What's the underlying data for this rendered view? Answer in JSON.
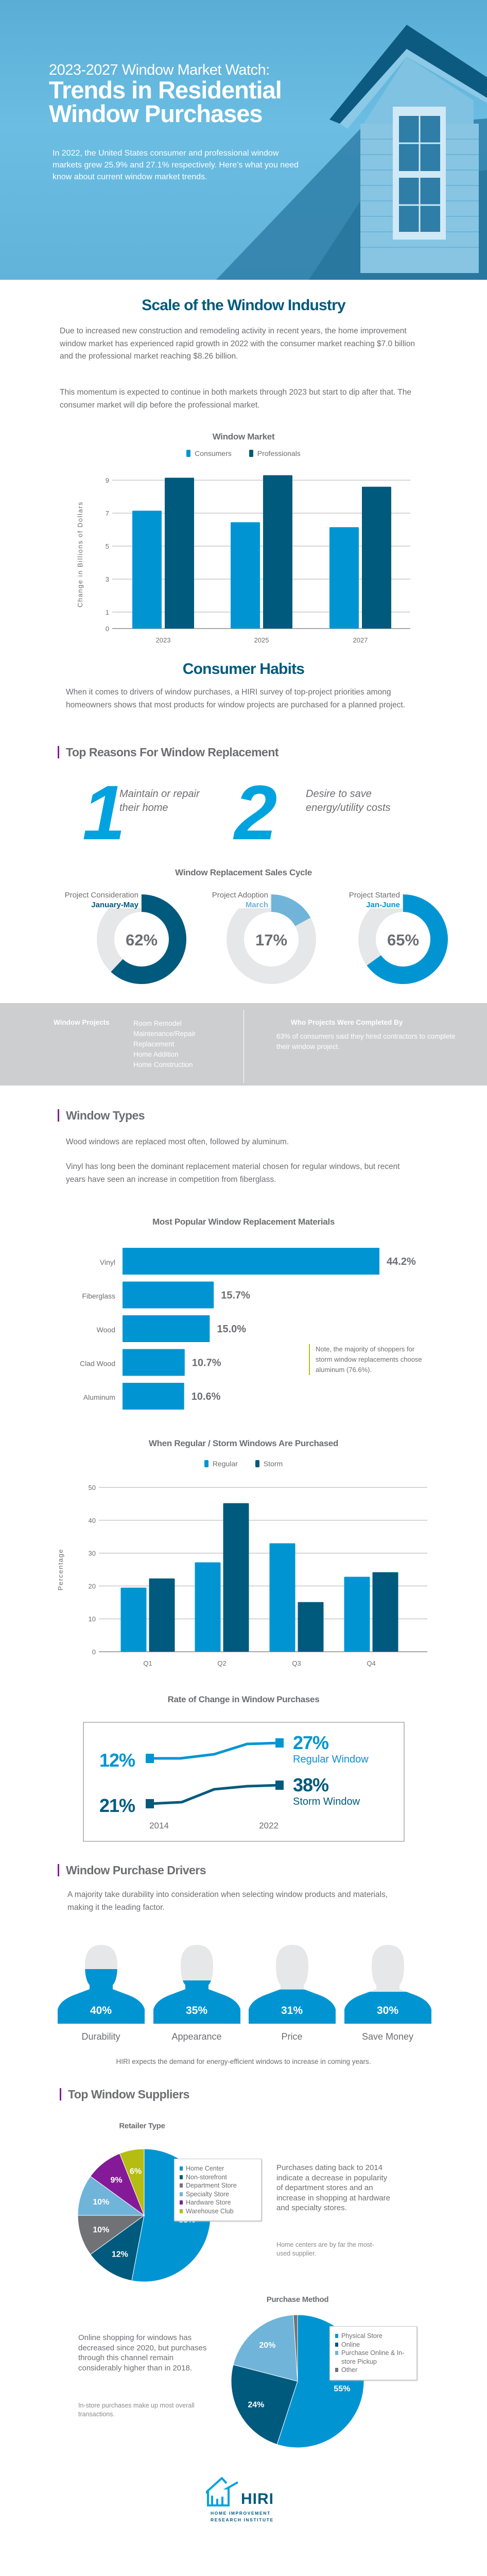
{
  "hero": {
    "kicker": "2023-2027 Window Market Watch:",
    "title_line1": "Trends in Residential",
    "title_line2": "Window Purchases",
    "intro": "In 2022, the United States consumer and professional window markets grew 25.9% and 27.1% respectively. Here’s what you need know about current window market trends."
  },
  "colors": {
    "navy": "#005a7d",
    "blue": "#0095d2",
    "light_blue": "#70b4d9",
    "gray": "#707276",
    "purple": "#851a98",
    "lime": "#b5bd12",
    "text": "#6d6e71"
  },
  "scale": {
    "title": "Scale of the Window Industry",
    "para1": "Due to increased new construction and remodeling activity in recent years, the home improvement window market has experienced rapid growth in 2022 with the consumer market reaching $7.0 billion and the professional market reaching $8.26 billion.",
    "para2": "This momentum is expected to continue in both markets through 2023 but start to dip after that. The consumer market will dip before the professional market."
  },
  "habits": {
    "title": "Consumer Habits",
    "para": "When it comes to drivers of window purchases, a HIRI survey of top-project priorities among homeowners shows that most products for window projects are purchased for a planned project.",
    "reasons_heading": "Top Reasons For Window Replacement",
    "reasons": [
      {
        "num": "1",
        "text": "Maintain or repair their home"
      },
      {
        "num": "2",
        "text": "Desire to save energy/utility costs"
      }
    ]
  },
  "projects_band": {
    "label": "Window Projects",
    "items": [
      "Room Remodel",
      "Maintenance/Repair",
      "Replacement",
      "Home Addition",
      "Home Construction"
    ],
    "who_heading": "Who Projects Were Completed By",
    "who_text": "63% of consumers said they hired contractors to complete their window project."
  },
  "window_types": {
    "heading": "Window Types",
    "para1": "Wood windows are replaced most often, followed by aluminum.",
    "para2": "Vinyl has long been the dominant replacement material chosen for regular windows, but recent years have seen an increase in competition from fiberglass.",
    "note": "Note, the majority of shoppers for storm window replacements choose aluminum (76.6%)."
  },
  "drivers": {
    "heading": "Window Purchase Drivers",
    "para": "A majority take durability into consideration when selecting window products and materials, making it the leading factor.",
    "items": [
      {
        "label": "Durability",
        "value": 40,
        "text": "40%"
      },
      {
        "label": "Appearance",
        "value": 35,
        "text": "35%"
      },
      {
        "label": "Price",
        "value": 31,
        "text": "31%"
      },
      {
        "label": "Save Money",
        "value": 30,
        "text": "30%"
      }
    ],
    "footnote": "HIRI expects the demand for energy-efficient windows to increase in coming years."
  },
  "suppliers": {
    "heading": "Top Window Suppliers",
    "retailer_text": "Purchases dating back to 2014 indicate a decrease in popularity of department stores and an increase in shopping at hardware and specialty stores.",
    "retailer_note": "Home centers are by far the most-used supplier.",
    "method_text": "Online shopping for windows has decreased since 2020, but purchases through this channel remain considerably higher than in 2018.",
    "method_note": "In-store purchases make up most overall transactions."
  },
  "logo": {
    "name": "HIRI",
    "line1": "HOME IMPROVEMENT",
    "line2": "RESEARCH INSTITUTE"
  },
  "chart_data": [
    {
      "id": "window_market",
      "type": "bar",
      "title": "Window Market",
      "ylabel": "Change in Billions of Dollars",
      "xlabel": "",
      "categories": [
        "2023",
        "2025",
        "2027"
      ],
      "series": [
        {
          "name": "Consumers",
          "color": "#0095d2",
          "values": [
            7.15,
            6.45,
            6.15
          ]
        },
        {
          "name": "Professionals",
          "color": "#005a7d",
          "values": [
            9.15,
            9.3,
            8.6
          ]
        }
      ],
      "yticks": [
        "0",
        "1",
        "3",
        "5",
        "7",
        "9"
      ],
      "ylim": [
        0,
        9
      ],
      "grid": true,
      "legend": "top"
    },
    {
      "id": "sales_cycle",
      "type": "pie",
      "title": "Window Replacement Sales Cycle",
      "items": [
        {
          "label": "Project Consideration",
          "period": "January-May",
          "value": 62,
          "text": "62%",
          "color": "#005a7d"
        },
        {
          "label": "Project Adoption",
          "period": "March",
          "value": 17,
          "text": "17%",
          "color": "#70b4d9"
        },
        {
          "label": "Project Started",
          "period": "Jan-June",
          "value": 65,
          "text": "65%",
          "color": "#0095d2"
        }
      ]
    },
    {
      "id": "materials",
      "type": "bar",
      "orientation": "horizontal",
      "title": "Most Popular Window Replacement Materials",
      "categories": [
        "Vinyl",
        "Fiberglass",
        "Wood",
        "Clad Wood",
        "Aluminum"
      ],
      "values": [
        44.2,
        15.7,
        15.0,
        10.7,
        10.6
      ],
      "labels": [
        "44.2%",
        "15.7%",
        "15.0%",
        "10.7%",
        "10.6%"
      ]
    },
    {
      "id": "regular_storm",
      "type": "bar",
      "title": "When Regular / Storm Windows Are Purchased",
      "ylabel": "Percentage",
      "xlabel": "",
      "categories": [
        "Q1",
        "Q2",
        "Q3",
        "Q4"
      ],
      "series": [
        {
          "name": "Regular",
          "color": "#0095d2",
          "values": [
            19.5,
            27.2,
            33.0,
            22.8
          ]
        },
        {
          "name": "Storm",
          "color": "#005a7d",
          "values": [
            22.3,
            45.2,
            15.1,
            24.2
          ]
        }
      ],
      "yticks": [
        "0",
        "10",
        "20",
        "30",
        "40",
        "50"
      ],
      "ylim": [
        0,
        50
      ],
      "grid": true,
      "legend": "top"
    },
    {
      "id": "rate_of_change",
      "type": "line",
      "title": "Rate of Change in Window Purchases",
      "x": [
        "2014",
        "2022"
      ],
      "series": [
        {
          "name": "Regular Window",
          "color": "#0095d2",
          "start": "12%",
          "end": "27%",
          "values": [
            12,
            27
          ]
        },
        {
          "name": "Storm Window",
          "color": "#005a7d",
          "start": "21%",
          "end": "38%",
          "values": [
            21,
            38
          ]
        }
      ]
    },
    {
      "id": "retailer_type",
      "type": "pie",
      "title": "Retailer Type",
      "legend": "right",
      "slices": [
        {
          "name": "Home Center",
          "value": 53,
          "text": "53%",
          "color": "#0095d2"
        },
        {
          "name": "Non-storefront",
          "value": 12,
          "text": "12%",
          "color": "#005a7d"
        },
        {
          "name": "Department Store",
          "value": 10,
          "text": "10%",
          "color": "#707276"
        },
        {
          "name": "Specialty Store",
          "value": 10,
          "text": "10%",
          "color": "#70b4d9"
        },
        {
          "name": "Hardware Store",
          "value": 9,
          "text": "9%",
          "color": "#851a98"
        },
        {
          "name": "Warehouse Club",
          "value": 6,
          "text": "6%",
          "color": "#b5bd12"
        }
      ]
    },
    {
      "id": "purchase_method",
      "type": "pie",
      "title": "Purchase Method",
      "legend": "right",
      "slices": [
        {
          "name": "Physical Store",
          "value": 55,
          "text": "55%",
          "color": "#0095d2"
        },
        {
          "name": "Online",
          "value": 24,
          "text": "24%",
          "color": "#005a7d"
        },
        {
          "name": "Purchase Online & In-store Pickup",
          "value": 20,
          "text": "20%",
          "color": "#70b4d9"
        },
        {
          "name": "Other",
          "value": 1,
          "text": "",
          "color": "#707276"
        }
      ]
    }
  ]
}
